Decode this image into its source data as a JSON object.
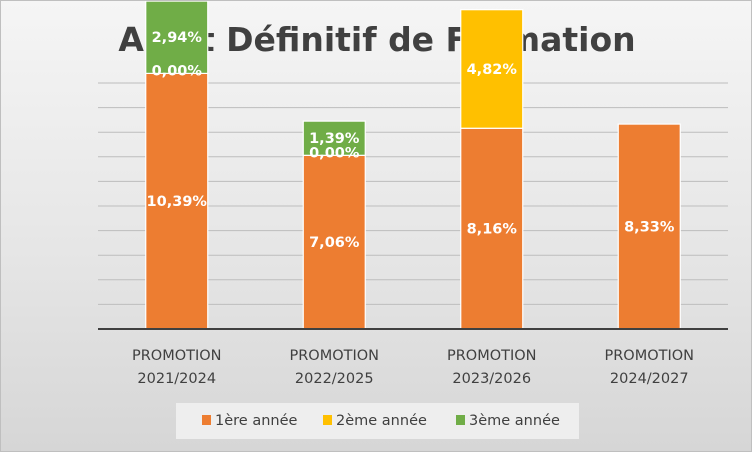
{
  "chart_data": {
    "type": "bar",
    "stacked": true,
    "title": "Arrêt Définitif de Formation",
    "categories": [
      [
        "PROMOTION",
        "2021/2024"
      ],
      [
        "PROMOTION",
        "2022/2025"
      ],
      [
        "PROMOTION",
        "2023/2026"
      ],
      [
        "PROMOTION",
        "2024/2027"
      ]
    ],
    "series": [
      {
        "name": "1ère année",
        "color": "#ed7d31",
        "values": [
          10.39,
          7.06,
          8.16,
          8.33
        ],
        "labels": [
          "10,39%",
          "7,06%",
          "8,16%",
          "8,33%"
        ]
      },
      {
        "name": "2ème année",
        "color": "#ffc000",
        "values": [
          0.0,
          0.0,
          4.82,
          null
        ],
        "labels": [
          "0,00%",
          "0,00%",
          "4,82%",
          null
        ]
      },
      {
        "name": "3ème année",
        "color": "#70ad47",
        "values": [
          2.94,
          1.39,
          null,
          null
        ],
        "labels": [
          "2,94%",
          "1,39%",
          null,
          null
        ]
      }
    ],
    "ylim": [
      0,
      20
    ],
    "y_gridline_step": 1,
    "y_axis_labels_visible": false,
    "grid": true,
    "legend_position": "bottom"
  }
}
